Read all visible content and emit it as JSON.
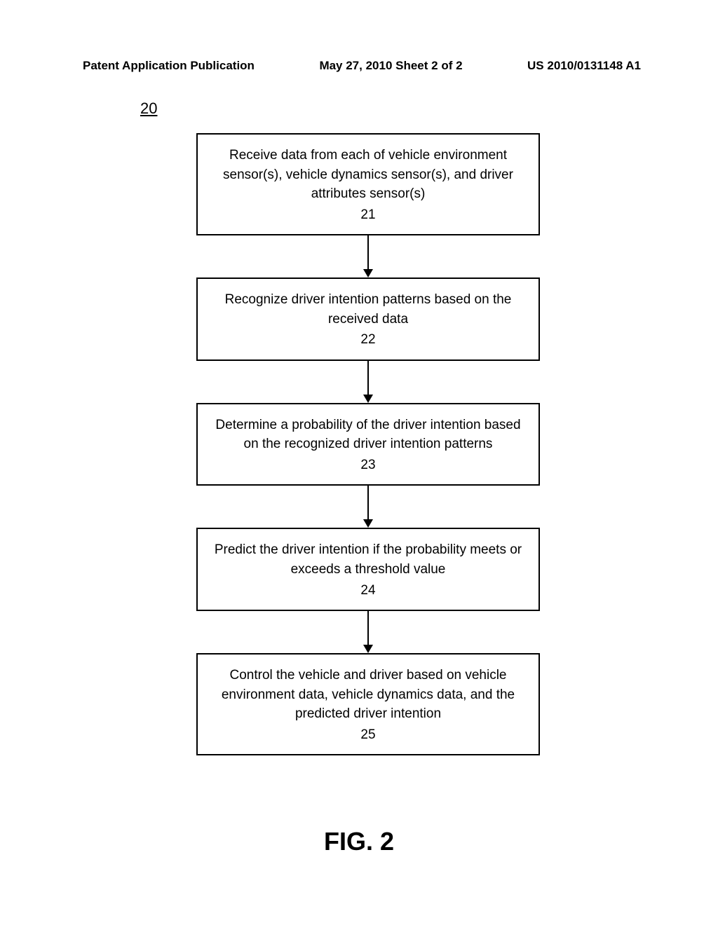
{
  "header": {
    "left": "Patent Application Publication",
    "center": "May 27, 2010  Sheet 2 of 2",
    "right": "US 2010/0131148 A1"
  },
  "figureRef": "20",
  "flow": {
    "boxes": [
      {
        "text": "Receive data from each of vehicle environment sensor(s), vehicle dynamics sensor(s), and driver attributes sensor(s)",
        "num": "21"
      },
      {
        "text": "Recognize driver intention patterns based on the received data",
        "num": "22"
      },
      {
        "text": "Determine a probability of the driver intention based on the recognized driver intention patterns",
        "num": "23"
      },
      {
        "text": "Predict the driver intention if the probability meets or exceeds a threshold value",
        "num": "24"
      },
      {
        "text": "Control the vehicle and driver based on vehicle environment data, vehicle dynamics data, and the predicted driver intention",
        "num": "25"
      }
    ],
    "arrow": {
      "length": 60,
      "stroke": "#000000",
      "strokeWidth": 2,
      "headWidth": 14,
      "headHeight": 12
    }
  },
  "figureCaption": "FIG. 2",
  "figureCaptionTop": 1180
}
